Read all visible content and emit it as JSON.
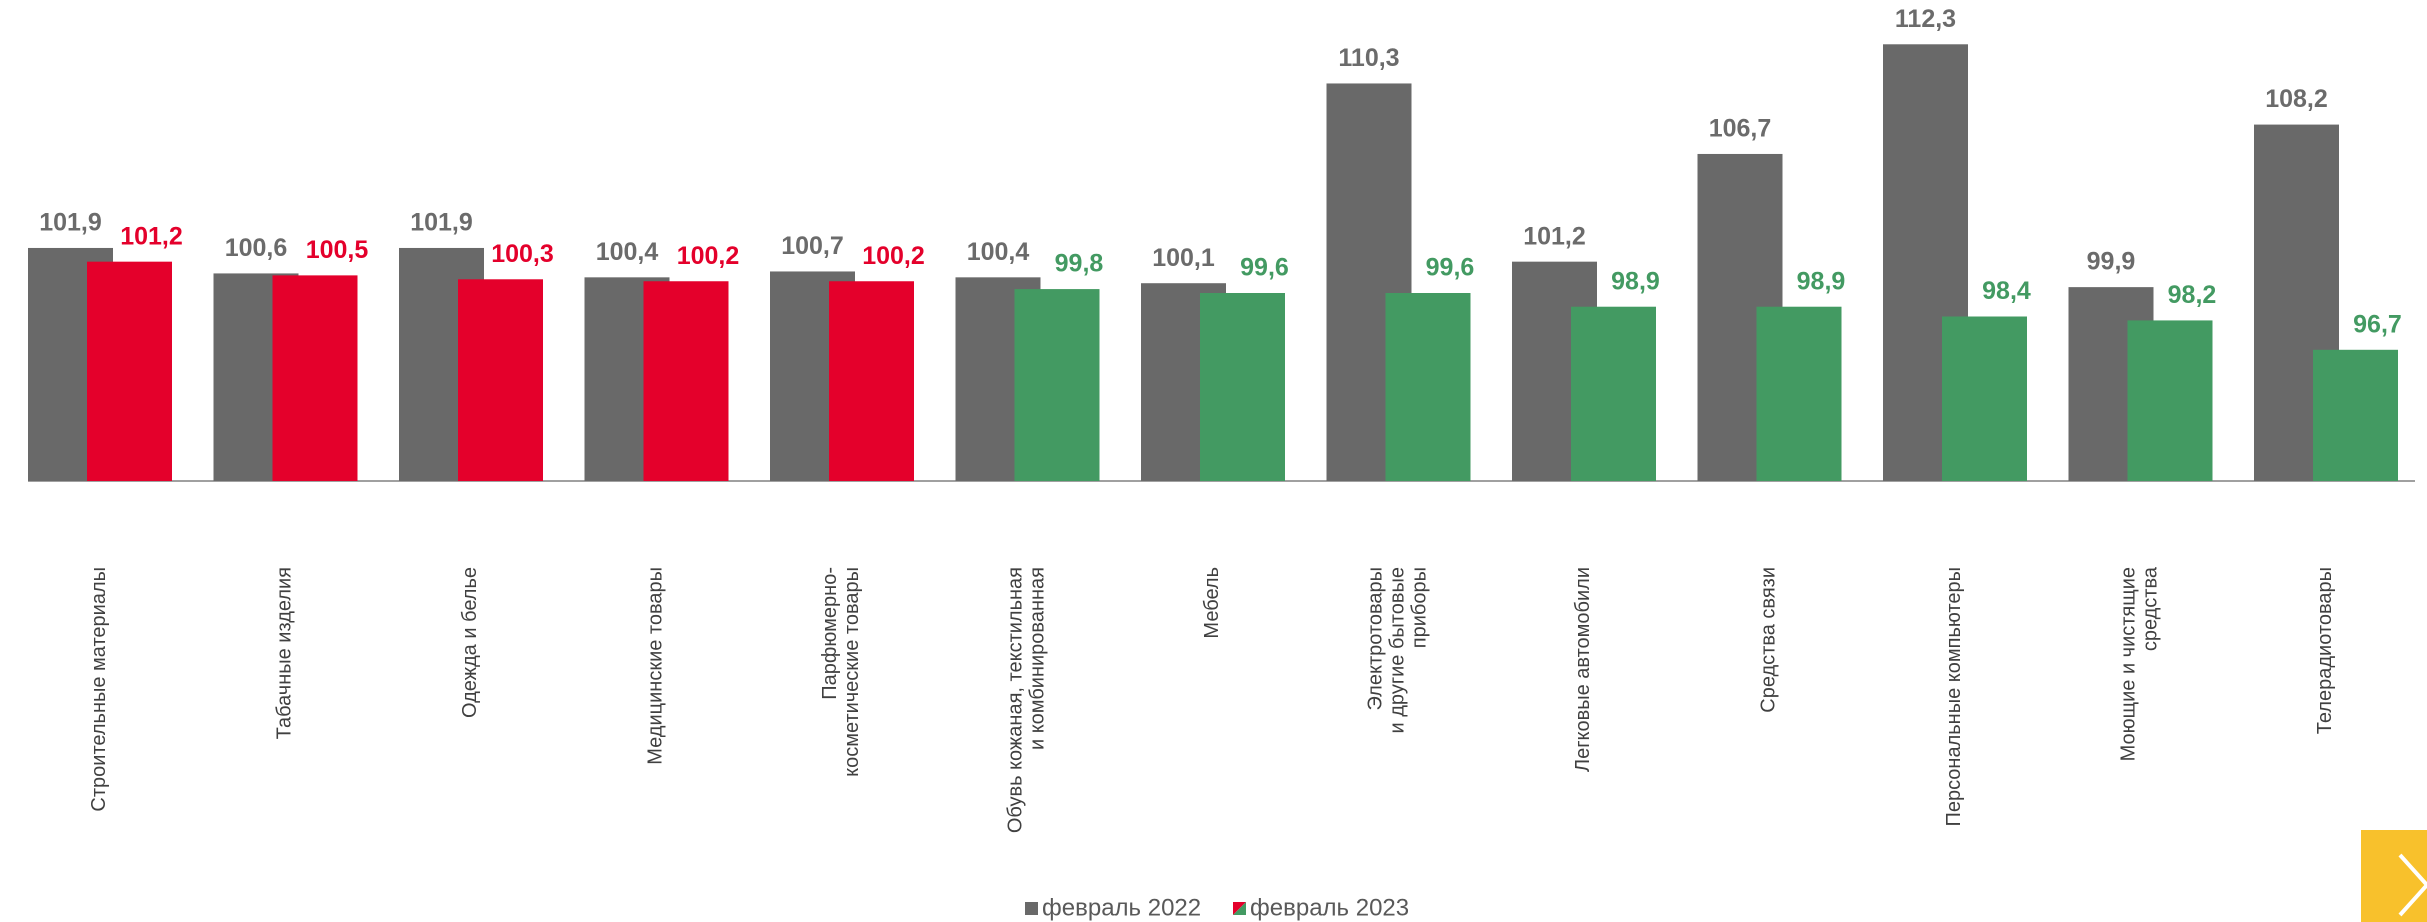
{
  "chart_data": {
    "type": "bar",
    "categories": [
      "Строительные материалы",
      "Табачные изделия",
      "Одежда и белье",
      "Медицинские товары",
      "Парфюмерно-\nкосметические товары",
      "Обувь кожаная, текстильная\nи комбинированная",
      "Мебель",
      "Электротовары\nи другие бытовые\nприборы",
      "Легковые автомобили",
      "Средства связи",
      "Персональные компьютеры",
      "Моющие и чистящие\nсредства",
      "Телерадиотовары"
    ],
    "series": [
      {
        "name": "февраль 2022",
        "color": "#696969",
        "values": [
          101.9,
          100.6,
          101.9,
          100.4,
          100.7,
          100.4,
          100.1,
          110.3,
          101.2,
          106.7,
          112.3,
          99.9,
          108.2
        ],
        "value_labels": [
          "101,9",
          "100,6",
          "101,9",
          "100,4",
          "100,7",
          "100,4",
          "100,1",
          "110,3",
          "101,2",
          "106,7",
          "112,3",
          "99,9",
          "108,2"
        ]
      },
      {
        "name": "февраль 2023",
        "colors": [
          "#e4002b",
          "#e4002b",
          "#e4002b",
          "#e4002b",
          "#e4002b",
          "#439a62",
          "#439a62",
          "#439a62",
          "#439a62",
          "#439a62",
          "#439a62",
          "#439a62",
          "#439a62"
        ],
        "values": [
          101.2,
          100.5,
          100.3,
          100.2,
          100.2,
          99.8,
          99.6,
          99.6,
          98.9,
          98.9,
          98.4,
          98.2,
          96.7
        ],
        "value_labels": [
          "101,2",
          "100,5",
          "100,3",
          "100,2",
          "100,2",
          "99,8",
          "99,6",
          "99,6",
          "98,9",
          "98,9",
          "98,4",
          "98,2",
          "96,7"
        ]
      }
    ],
    "ylim": [
      90,
      114
    ]
  }
}
